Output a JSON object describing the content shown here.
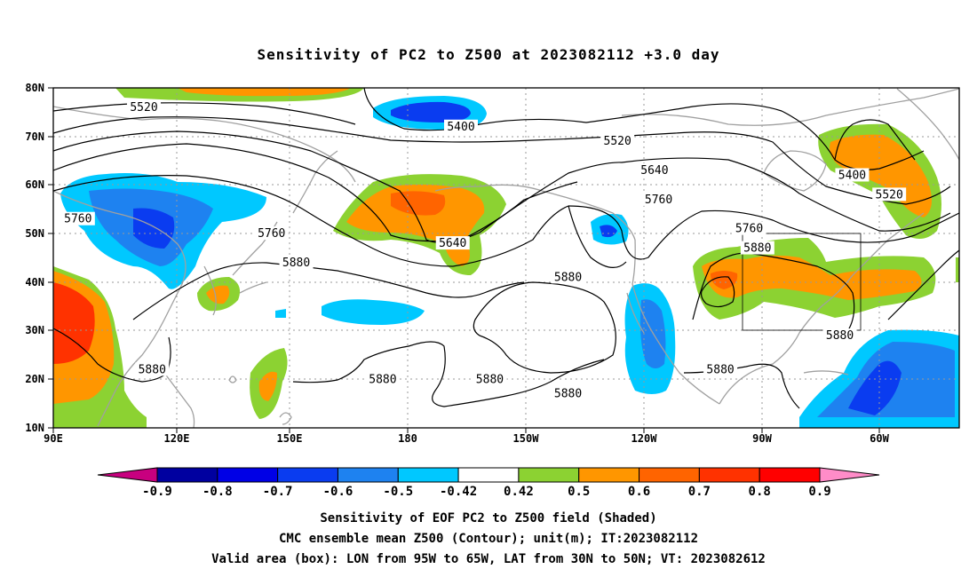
{
  "title": "Sensitivity of PC2 to Z500 at 2023082112 +3.0 day",
  "map": {
    "lon_ticks": [
      "90E",
      "120E",
      "150E",
      "180",
      "150W",
      "120W",
      "90W",
      "60W"
    ],
    "lat_ticks": [
      "80N",
      "70N",
      "60N",
      "50N",
      "40N",
      "30N",
      "20N",
      "10N"
    ],
    "extent": {
      "lon_min": 90,
      "lon_max": 310,
      "lat_min": 10,
      "lat_max": 80
    },
    "valid_box": {
      "lon": [
        265,
        295
      ],
      "lat": [
        30,
        50
      ]
    },
    "contour_labels": [
      {
        "text": "5520",
        "lon": 112,
        "lat": 76
      },
      {
        "text": "5400",
        "lon": 189,
        "lat": 72
      },
      {
        "text": "5520",
        "lon": 227,
        "lat": 69
      },
      {
        "text": "5640",
        "lon": 236,
        "lat": 63
      },
      {
        "text": "5400",
        "lon": 284,
        "lat": 62
      },
      {
        "text": "5520",
        "lon": 293,
        "lat": 58
      },
      {
        "text": "5760",
        "lon": 96,
        "lat": 53
      },
      {
        "text": "5760",
        "lon": 237,
        "lat": 57
      },
      {
        "text": "5760",
        "lon": 259,
        "lat": 51
      },
      {
        "text": "5760",
        "lon": 143,
        "lat": 50
      },
      {
        "text": "5640",
        "lon": 187,
        "lat": 48
      },
      {
        "text": "5880",
        "lon": 261,
        "lat": 47
      },
      {
        "text": "5880",
        "lon": 149,
        "lat": 44
      },
      {
        "text": "5880",
        "lon": 215,
        "lat": 41
      },
      {
        "text": "5880",
        "lon": 281,
        "lat": 29
      },
      {
        "text": "5880",
        "lon": 114,
        "lat": 22
      },
      {
        "text": "5880",
        "lon": 170,
        "lat": 20
      },
      {
        "text": "5880",
        "lon": 196,
        "lat": 20
      },
      {
        "text": "5880",
        "lon": 252,
        "lat": 22
      },
      {
        "text": "5880",
        "lon": 215,
        "lat": 17
      }
    ]
  },
  "colorbar": {
    "labels": [
      "-0.9",
      "-0.8",
      "-0.7",
      "-0.6",
      "-0.5",
      "-0.42",
      "0.42",
      "0.5",
      "0.6",
      "0.7",
      "0.8",
      "0.9"
    ],
    "colors": [
      "#c8007f",
      "#0000a0",
      "#0000e6",
      "#0a3cf0",
      "#1e82f0",
      "#00c8ff",
      "#ffffff",
      "#8cd232",
      "#ff9600",
      "#ff6400",
      "#ff3200",
      "#ff0000",
      "#ff8cc8"
    ]
  },
  "caption": {
    "line1": "Sensitivity of EOF PC2 to Z500 field (Shaded)",
    "line2": "CMC ensemble mean Z500 (Contour); unit(m); IT:2023082112",
    "line3": "Valid area (box): LON from 95W to 65W, LAT from 30N to 50N; VT: 2023082612"
  }
}
